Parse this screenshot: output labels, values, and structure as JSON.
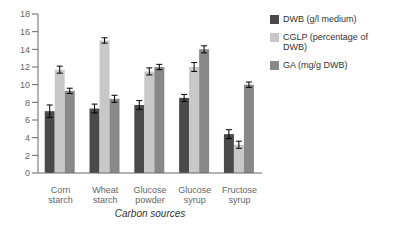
{
  "chart_data": {
    "type": "bar",
    "categories": [
      "Corn\nstarch",
      "Wheat\nstarch",
      "Glucose\npowder",
      "Glucose\nsyrup",
      "Fructose\nsyrup"
    ],
    "series": [
      {
        "name": "DWB (g/l medium)",
        "color": "#4a4a4a",
        "values": [
          7.0,
          7.3,
          7.7,
          8.5,
          4.4
        ],
        "errors": [
          0.7,
          0.5,
          0.5,
          0.4,
          0.5
        ]
      },
      {
        "name": "CGLP (percentage of\nDWB)",
        "color": "#c8c8c8",
        "values": [
          11.7,
          15.0,
          11.5,
          12.0,
          3.2
        ],
        "errors": [
          0.4,
          0.3,
          0.4,
          0.5,
          0.4
        ]
      },
      {
        "name": "GA (mg/g DWB)",
        "color": "#888888",
        "values": [
          9.3,
          8.4,
          12.0,
          14.0,
          10.0
        ],
        "errors": [
          0.3,
          0.4,
          0.3,
          0.4,
          0.3
        ]
      }
    ],
    "xlabel": "Carbon sources",
    "ylim": [
      0,
      18
    ],
    "yticks": [
      0,
      2,
      4,
      6,
      8,
      10,
      12,
      14,
      16,
      18
    ],
    "grid": false,
    "legend": "right"
  }
}
